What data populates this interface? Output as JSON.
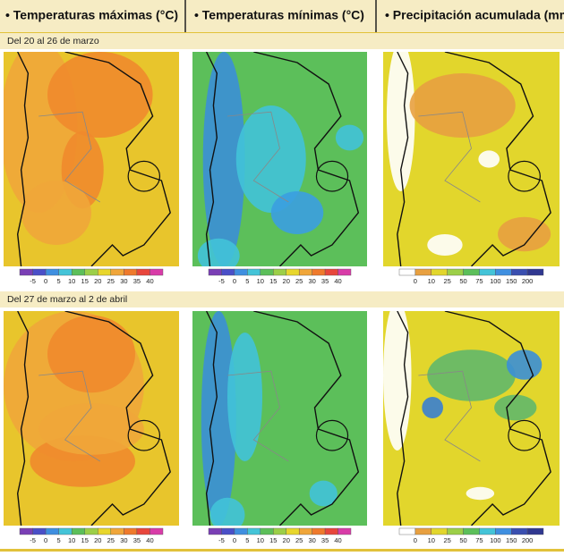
{
  "header": {
    "titles": [
      "• Temperaturas máximas (°C)",
      "• Temperaturas mínimas (°C)",
      "• Precipitación acumulada (mm)"
    ]
  },
  "periods": [
    {
      "label": "Del 20 al 26 de marzo"
    },
    {
      "label": "Del 27 de marzo al 2 de abril"
    }
  ],
  "legends": {
    "temperature": [
      -5,
      0,
      5,
      10,
      15,
      20,
      25,
      30,
      35,
      40
    ],
    "precipitation": [
      0,
      10,
      25,
      50,
      75,
      100,
      150,
      200
    ]
  }
}
